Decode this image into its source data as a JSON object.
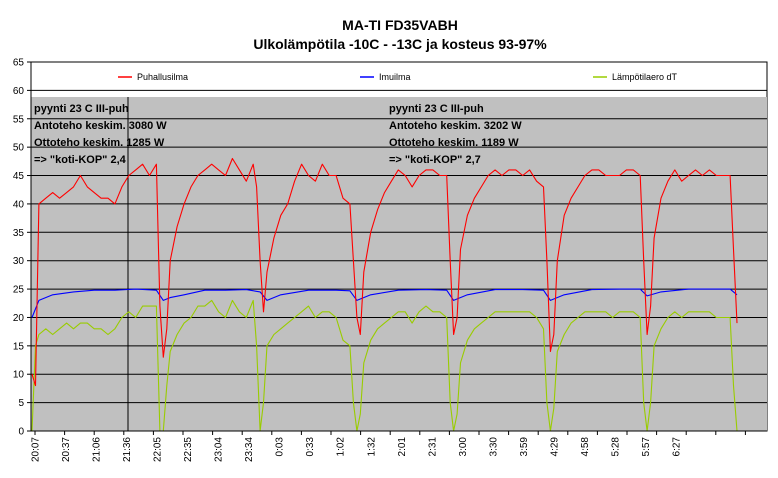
{
  "chart_data": {
    "type": "line",
    "title": "MA-TI FD35VABH",
    "subtitle": "Ulkolämpötila -10C - -13C ja kosteus 93-97%",
    "xlabel": "",
    "ylabel": "",
    "ylim": [
      0,
      65
    ],
    "yticks": [
      0,
      5,
      10,
      15,
      20,
      25,
      30,
      35,
      40,
      45,
      50,
      55,
      60,
      65
    ],
    "x_tick_labels": [
      "20:07",
      "20:37",
      "21:06",
      "21:36",
      "22:05",
      "22:35",
      "23:04",
      "23:34",
      "0:03",
      "0:33",
      "1:02",
      "1:32",
      "2:01",
      "2:31",
      "3:00",
      "3:30",
      "3:59",
      "4:29",
      "4:58",
      "5:28",
      "5:57",
      "6:27"
    ],
    "grid": true,
    "legend_position": "top",
    "plot_background": "#c0c0c0",
    "series": [
      {
        "name": "Puhallusilma",
        "color": "#ff0000",
        "points": [
          [
            0,
            10
          ],
          [
            0.5,
            8
          ],
          [
            1,
            40
          ],
          [
            2,
            41
          ],
          [
            3,
            42
          ],
          [
            4,
            41
          ],
          [
            5,
            42
          ],
          [
            6,
            43
          ],
          [
            7,
            45
          ],
          [
            8,
            43
          ],
          [
            9,
            42
          ],
          [
            10,
            41
          ],
          [
            11,
            41
          ],
          [
            12,
            40
          ],
          [
            13,
            43
          ],
          [
            14,
            45
          ],
          [
            15,
            46
          ],
          [
            16,
            47
          ],
          [
            17,
            45
          ],
          [
            18,
            47
          ],
          [
            18.5,
            22
          ],
          [
            19,
            13
          ],
          [
            19.5,
            18
          ],
          [
            20,
            30
          ],
          [
            21,
            36
          ],
          [
            22,
            40
          ],
          [
            23,
            43
          ],
          [
            24,
            45
          ],
          [
            25,
            46
          ],
          [
            26,
            47
          ],
          [
            27,
            46
          ],
          [
            28,
            45
          ],
          [
            29,
            48
          ],
          [
            30,
            46
          ],
          [
            31,
            44
          ],
          [
            32,
            47
          ],
          [
            32.5,
            43
          ],
          [
            33,
            30
          ],
          [
            33.5,
            21
          ],
          [
            34,
            28
          ],
          [
            35,
            34
          ],
          [
            36,
            38
          ],
          [
            37,
            40
          ],
          [
            38,
            44
          ],
          [
            39,
            47
          ],
          [
            40,
            45
          ],
          [
            41,
            44
          ],
          [
            42,
            47
          ],
          [
            43,
            45
          ],
          [
            44,
            45
          ],
          [
            45,
            41
          ],
          [
            46,
            40
          ],
          [
            46.5,
            30
          ],
          [
            47,
            20
          ],
          [
            47.5,
            17
          ],
          [
            48,
            28
          ],
          [
            49,
            35
          ],
          [
            50,
            39
          ],
          [
            51,
            42
          ],
          [
            52,
            44
          ],
          [
            53,
            46
          ],
          [
            54,
            45
          ],
          [
            55,
            43
          ],
          [
            56,
            45
          ],
          [
            57,
            46
          ],
          [
            58,
            46
          ],
          [
            59,
            45
          ],
          [
            60,
            45
          ],
          [
            60.5,
            30
          ],
          [
            61,
            17
          ],
          [
            61.5,
            20
          ],
          [
            62,
            32
          ],
          [
            63,
            38
          ],
          [
            64,
            41
          ],
          [
            65,
            43
          ],
          [
            66,
            45
          ],
          [
            67,
            46
          ],
          [
            68,
            45
          ],
          [
            69,
            46
          ],
          [
            70,
            46
          ],
          [
            71,
            45
          ],
          [
            72,
            46
          ],
          [
            73,
            44
          ],
          [
            74,
            43
          ],
          [
            74.5,
            30
          ],
          [
            75,
            14
          ],
          [
            75.5,
            17
          ],
          [
            76,
            30
          ],
          [
            77,
            38
          ],
          [
            78,
            41
          ],
          [
            79,
            43
          ],
          [
            80,
            45
          ],
          [
            81,
            46
          ],
          [
            82,
            46
          ],
          [
            83,
            45
          ],
          [
            84,
            45
          ],
          [
            85,
            45
          ],
          [
            86,
            46
          ],
          [
            87,
            46
          ],
          [
            88,
            45
          ],
          [
            88.5,
            30
          ],
          [
            89,
            17
          ],
          [
            89.5,
            22
          ],
          [
            90,
            34
          ],
          [
            91,
            41
          ],
          [
            92,
            44
          ],
          [
            93,
            46
          ],
          [
            94,
            44
          ],
          [
            95,
            45
          ],
          [
            96,
            46
          ],
          [
            97,
            45
          ],
          [
            98,
            46
          ],
          [
            99,
            45
          ],
          [
            100,
            45
          ],
          [
            101,
            45
          ],
          [
            101.5,
            32
          ],
          [
            102,
            19
          ]
        ]
      },
      {
        "name": "Imuilma",
        "color": "#0000ff",
        "points": [
          [
            0,
            20
          ],
          [
            1,
            23
          ],
          [
            3,
            24
          ],
          [
            6,
            24.5
          ],
          [
            9,
            24.8
          ],
          [
            12,
            24.8
          ],
          [
            15,
            25
          ],
          [
            18,
            24.8
          ],
          [
            19,
            23
          ],
          [
            20,
            23.5
          ],
          [
            22,
            24
          ],
          [
            25,
            24.8
          ],
          [
            28,
            24.8
          ],
          [
            31,
            24.9
          ],
          [
            33,
            24.5
          ],
          [
            34,
            23
          ],
          [
            36,
            24
          ],
          [
            40,
            24.8
          ],
          [
            44,
            24.8
          ],
          [
            46,
            24.7
          ],
          [
            47,
            23
          ],
          [
            49,
            24
          ],
          [
            53,
            24.8
          ],
          [
            57,
            24.9
          ],
          [
            60,
            24.8
          ],
          [
            61,
            23
          ],
          [
            63,
            24
          ],
          [
            67,
            24.9
          ],
          [
            71,
            24.9
          ],
          [
            74,
            24.8
          ],
          [
            75,
            23
          ],
          [
            77,
            24
          ],
          [
            81,
            24.9
          ],
          [
            85,
            25
          ],
          [
            88,
            25
          ],
          [
            89,
            23.8
          ],
          [
            91,
            24.5
          ],
          [
            95,
            25
          ],
          [
            99,
            25
          ],
          [
            101,
            25
          ],
          [
            102,
            24
          ]
        ]
      },
      {
        "name": "Lämpötilaero dT",
        "color": "#99cc00",
        "points": [
          [
            0,
            0
          ],
          [
            0.5,
            15
          ],
          [
            1,
            17
          ],
          [
            2,
            18
          ],
          [
            3,
            17
          ],
          [
            4,
            18
          ],
          [
            5,
            19
          ],
          [
            6,
            18
          ],
          [
            7,
            19
          ],
          [
            8,
            19
          ],
          [
            9,
            18
          ],
          [
            10,
            18
          ],
          [
            11,
            17
          ],
          [
            12,
            18
          ],
          [
            13,
            20
          ],
          [
            14,
            21
          ],
          [
            15,
            20
          ],
          [
            16,
            22
          ],
          [
            17,
            22
          ],
          [
            18,
            22
          ],
          [
            18.5,
            0
          ],
          [
            19,
            0
          ],
          [
            19.5,
            8
          ],
          [
            20,
            14
          ],
          [
            21,
            17
          ],
          [
            22,
            19
          ],
          [
            23,
            20
          ],
          [
            24,
            22
          ],
          [
            25,
            22
          ],
          [
            26,
            23
          ],
          [
            27,
            21
          ],
          [
            28,
            20
          ],
          [
            29,
            23
          ],
          [
            30,
            21
          ],
          [
            31,
            20
          ],
          [
            32,
            23
          ],
          [
            32.5,
            15
          ],
          [
            33,
            0
          ],
          [
            33.5,
            5
          ],
          [
            34,
            15
          ],
          [
            35,
            17
          ],
          [
            36,
            18
          ],
          [
            37,
            19
          ],
          [
            38,
            20
          ],
          [
            39,
            21
          ],
          [
            40,
            22
          ],
          [
            41,
            20
          ],
          [
            42,
            21
          ],
          [
            43,
            21
          ],
          [
            44,
            20
          ],
          [
            45,
            16
          ],
          [
            46,
            15
          ],
          [
            46.5,
            5
          ],
          [
            47,
            0
          ],
          [
            47.5,
            3
          ],
          [
            48,
            12
          ],
          [
            49,
            16
          ],
          [
            50,
            18
          ],
          [
            51,
            19
          ],
          [
            52,
            20
          ],
          [
            53,
            21
          ],
          [
            54,
            21
          ],
          [
            55,
            19
          ],
          [
            56,
            21
          ],
          [
            57,
            22
          ],
          [
            58,
            21
          ],
          [
            59,
            21
          ],
          [
            60,
            20
          ],
          [
            60.5,
            5
          ],
          [
            61,
            0
          ],
          [
            61.5,
            3
          ],
          [
            62,
            12
          ],
          [
            63,
            16
          ],
          [
            64,
            18
          ],
          [
            65,
            19
          ],
          [
            66,
            20
          ],
          [
            67,
            21
          ],
          [
            68,
            21
          ],
          [
            69,
            21
          ],
          [
            70,
            21
          ],
          [
            71,
            21
          ],
          [
            72,
            21
          ],
          [
            73,
            20
          ],
          [
            74,
            18
          ],
          [
            74.5,
            5
          ],
          [
            75,
            0
          ],
          [
            75.5,
            4
          ],
          [
            76,
            14
          ],
          [
            77,
            17
          ],
          [
            78,
            19
          ],
          [
            79,
            20
          ],
          [
            80,
            21
          ],
          [
            81,
            21
          ],
          [
            82,
            21
          ],
          [
            83,
            21
          ],
          [
            84,
            20
          ],
          [
            85,
            21
          ],
          [
            86,
            21
          ],
          [
            87,
            21
          ],
          [
            88,
            20
          ],
          [
            88.5,
            5
          ],
          [
            89,
            0
          ],
          [
            89.5,
            5
          ],
          [
            90,
            15
          ],
          [
            91,
            18
          ],
          [
            92,
            20
          ],
          [
            93,
            21
          ],
          [
            94,
            20
          ],
          [
            95,
            21
          ],
          [
            96,
            21
          ],
          [
            97,
            21
          ],
          [
            98,
            21
          ],
          [
            99,
            20
          ],
          [
            100,
            20
          ],
          [
            101,
            20
          ],
          [
            101.5,
            8
          ],
          [
            102,
            0
          ]
        ]
      }
    ],
    "annotations": [
      {
        "id": "left",
        "lines": [
          "pyynti 23 C III-puh",
          "Antoteho keskim. 3080 W",
          "Ottoteho keskim. 1285 W",
          "=> \"koti-KOP\" 2,4"
        ]
      },
      {
        "id": "right",
        "lines": [
          "pyynti 23 C III-puh",
          "Antoteho keskim. 3202 W",
          "Ottoteho keskim. 1189 W",
          "=> \"koti-KOP\" 2,7"
        ]
      }
    ]
  }
}
